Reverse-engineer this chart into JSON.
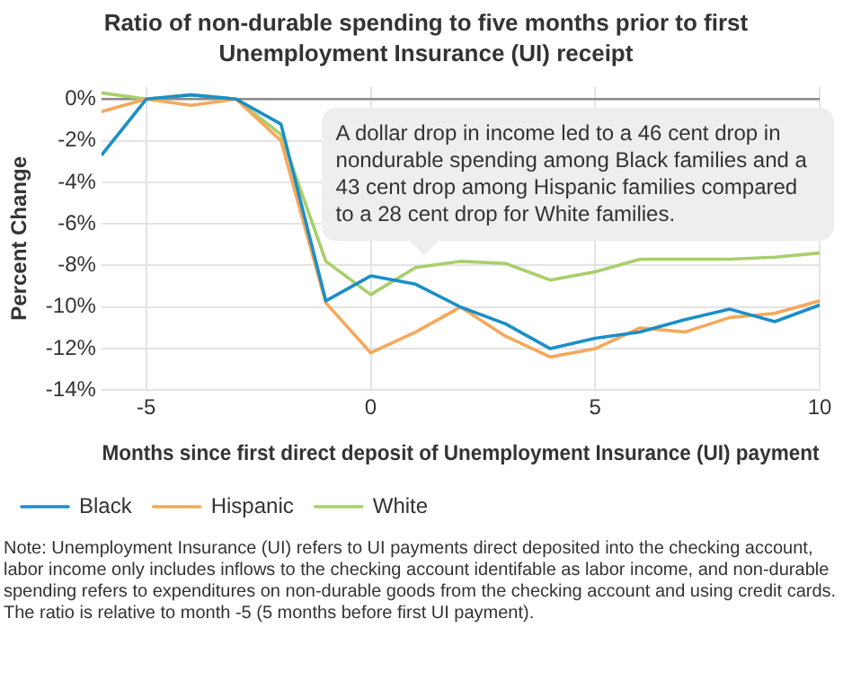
{
  "chart_data": {
    "type": "line",
    "title": "Ratio of non-durable spending to five months prior to first Unemployment Insurance (UI) receipt",
    "xlabel": "Months since first direct deposit of Unemployment Insurance (UI) payment",
    "ylabel": "Percent Change",
    "x": [
      -6,
      -5,
      -4,
      -3,
      -2,
      -1,
      0,
      1,
      2,
      3,
      4,
      5,
      6,
      7,
      8,
      9,
      10
    ],
    "series": [
      {
        "name": "Black",
        "color": "#1a8fc8",
        "values": [
          -2.7,
          0,
          0.2,
          0,
          -1.2,
          -9.7,
          -8.5,
          -8.9,
          -10,
          -10.8,
          -12,
          -11.5,
          -11.2,
          -10.6,
          -10.1,
          -10.7,
          -9.9
        ]
      },
      {
        "name": "Hispanic",
        "color": "#f5a85a",
        "values": [
          -0.6,
          0,
          -0.3,
          0,
          -2,
          -9.8,
          -12.2,
          -11.2,
          -10,
          -11.4,
          -12.4,
          -12,
          -11,
          -11.2,
          -10.5,
          -10.3,
          -9.7
        ]
      },
      {
        "name": "White",
        "color": "#a8cf6a",
        "values": [
          0.3,
          0,
          0.2,
          0,
          -1.7,
          -7.8,
          -9.4,
          -8.1,
          -7.8,
          -7.9,
          -8.7,
          -8.3,
          -7.7,
          -7.7,
          -7.7,
          -7.6,
          -7.4
        ]
      }
    ],
    "xlim": [
      -6,
      10
    ],
    "xticks": [
      -5,
      0,
      5,
      10
    ],
    "ylim": [
      -14,
      0.6
    ],
    "yticks": [
      {
        "value": 0,
        "label": "0%"
      },
      {
        "value": -2,
        "label": "-2%"
      },
      {
        "value": -4,
        "label": "-4%"
      },
      {
        "value": -6,
        "label": "-6%"
      },
      {
        "value": -8,
        "label": "-8%"
      },
      {
        "value": -10,
        "label": "-10%"
      },
      {
        "value": -12,
        "label": "-12%"
      },
      {
        "value": -14,
        "label": "-14%"
      }
    ],
    "ref_lines": [
      {
        "axis": "y",
        "value": 0,
        "color": "#888888"
      }
    ],
    "grid": true,
    "legend": "bottom left",
    "marker": "none",
    "line_style": "solid",
    "annotations": [
      "A dollar drop in income led to a 46 cent drop in nondurable spending among Black families and a 43 cent drop among Hispanic families compared to a 28 cent drop for White families.",
      "Note: Unemployment Insurance (UI) refers to UI payments direct deposited into the checking account, labor income only includes inflows to the checking account identifable as labor income, and non-durable spending refers to expenditures on non-durable goods from the checking account and using credit cards. The ratio is relative to month -5 (5 months before first UI payment)."
    ]
  }
}
